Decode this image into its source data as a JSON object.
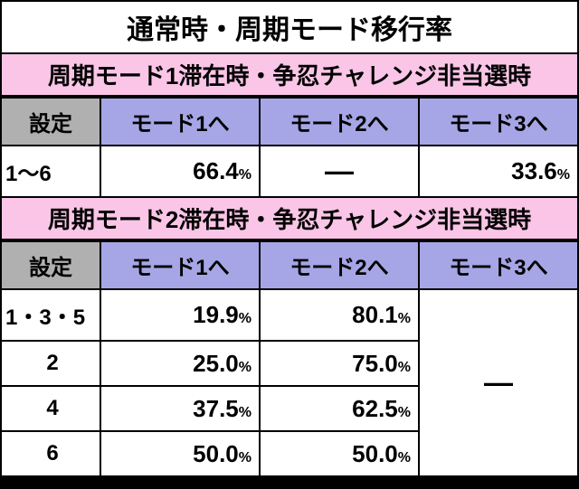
{
  "title": "通常時・周期モード移行率",
  "section1": {
    "subheader": "周期モード1滞在時・争忍チャレンジ非当選時",
    "headers": {
      "settei": "設定",
      "mode1": "モード1へ",
      "mode2": "モード2へ",
      "mode3": "モード3へ"
    },
    "rows": [
      {
        "settei": "1〜6",
        "mode1": "66.4",
        "mode2_dash": "—",
        "mode3": "33.6"
      }
    ]
  },
  "section2": {
    "subheader": "周期モード2滞在時・争忍チャレンジ非当選時",
    "headers": {
      "settei": "設定",
      "mode1": "モード1へ",
      "mode2": "モード2へ",
      "mode3": "モード3へ"
    },
    "rows": [
      {
        "settei": "1・3・5",
        "mode1": "19.9",
        "mode2": "80.1"
      },
      {
        "settei": "2",
        "mode1": "25.0",
        "mode2": "75.0"
      },
      {
        "settei": "4",
        "mode1": "37.5",
        "mode2": "62.5"
      },
      {
        "settei": "6",
        "mode1": "50.0",
        "mode2": "50.0"
      }
    ],
    "mode3_dash": "—"
  },
  "percent_symbol": "%",
  "colors": {
    "title_bg": "#ffffff",
    "subheader_bg": "#fac5e7",
    "settei_header_bg": "#b0b0b0",
    "mode_header_bg": "#a6a6e6",
    "cell_bg": "#ffffff",
    "border": "#000000",
    "text": "#000000"
  },
  "font_sizes": {
    "title": 30,
    "subheader": 26,
    "header": 24,
    "settei_cell": 24,
    "value": 26,
    "pct": 16,
    "dash": 32
  }
}
